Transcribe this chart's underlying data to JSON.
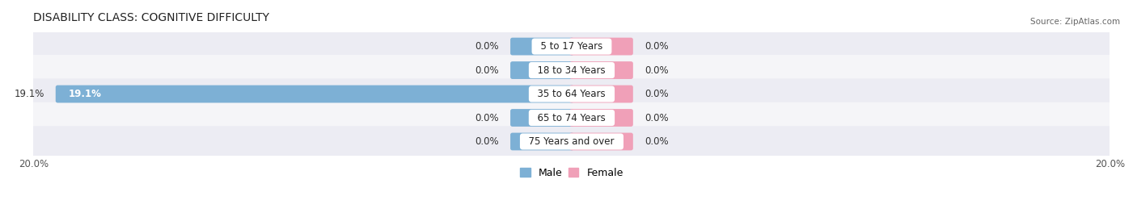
{
  "title": "DISABILITY CLASS: COGNITIVE DIFFICULTY",
  "source": "Source: ZipAtlas.com",
  "categories": [
    "5 to 17 Years",
    "18 to 34 Years",
    "35 to 64 Years",
    "65 to 74 Years",
    "75 Years and over"
  ],
  "male_values": [
    0.0,
    0.0,
    19.1,
    0.0,
    0.0
  ],
  "female_values": [
    0.0,
    0.0,
    0.0,
    0.0,
    0.0
  ],
  "x_max": 20.0,
  "male_color": "#7db0d5",
  "female_color": "#f0a0b8",
  "row_colors": [
    "#ececf3",
    "#f5f5f8",
    "#ececf3",
    "#f5f5f8",
    "#ececf3"
  ],
  "title_fontsize": 10,
  "label_fontsize": 8.5,
  "value_fontsize": 8.5,
  "tick_fontsize": 8.5,
  "legend_fontsize": 9,
  "min_bar_width": 2.2,
  "bar_height": 0.58
}
